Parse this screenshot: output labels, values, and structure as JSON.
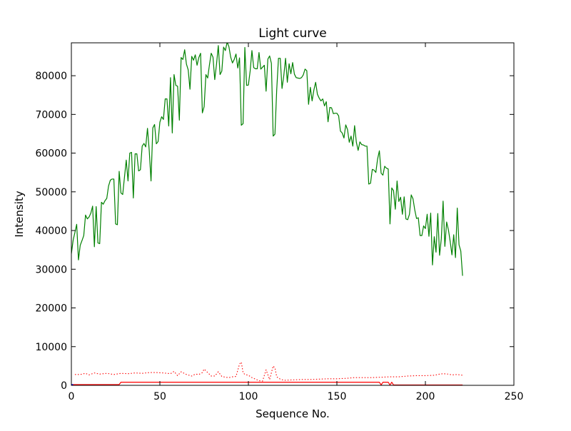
{
  "chart_data": {
    "type": "line",
    "title": "Light curve",
    "xlabel": "Sequence No.",
    "ylabel": "Intensity",
    "xlim": [
      0,
      250
    ],
    "ylim": [
      0,
      88500
    ],
    "xticks": [
      0,
      50,
      100,
      150,
      200,
      250
    ],
    "yticks": [
      0,
      10000,
      20000,
      30000,
      40000,
      50000,
      60000,
      70000,
      80000
    ],
    "grid": false,
    "legend": "none",
    "series": [
      {
        "color": "#008000",
        "style": "solid",
        "points": [
          [
            0,
            34000
          ],
          [
            1,
            37500
          ],
          [
            2,
            39500
          ],
          [
            3,
            41600
          ],
          [
            4,
            32400
          ],
          [
            5,
            36200
          ],
          [
            6,
            37400
          ],
          [
            7,
            38700
          ],
          [
            8,
            44000
          ],
          [
            9,
            43000
          ],
          [
            10,
            43500
          ],
          [
            11,
            44500
          ],
          [
            12,
            46300
          ],
          [
            13,
            35800
          ],
          [
            14,
            46200
          ],
          [
            15,
            36800
          ],
          [
            16,
            36600
          ],
          [
            17,
            47300
          ],
          [
            18,
            46800
          ],
          [
            19,
            47700
          ],
          [
            20,
            48300
          ],
          [
            21,
            51500
          ],
          [
            22,
            53000
          ],
          [
            23,
            53300
          ],
          [
            24,
            53300
          ],
          [
            25,
            41700
          ],
          [
            26,
            41500
          ],
          [
            27,
            55300
          ],
          [
            28,
            49700
          ],
          [
            29,
            49300
          ],
          [
            30,
            53800
          ],
          [
            31,
            58200
          ],
          [
            32,
            52800
          ],
          [
            33,
            60000
          ],
          [
            34,
            60200
          ],
          [
            35,
            48400
          ],
          [
            36,
            59800
          ],
          [
            37,
            59800
          ],
          [
            38,
            55400
          ],
          [
            39,
            55700
          ],
          [
            40,
            61800
          ],
          [
            41,
            62500
          ],
          [
            42,
            61600
          ],
          [
            43,
            66400
          ],
          [
            44,
            60600
          ],
          [
            45,
            52800
          ],
          [
            46,
            66500
          ],
          [
            47,
            67400
          ],
          [
            48,
            62400
          ],
          [
            49,
            63000
          ],
          [
            50,
            68000
          ],
          [
            51,
            69400
          ],
          [
            52,
            68700
          ],
          [
            53,
            74000
          ],
          [
            54,
            74000
          ],
          [
            55,
            67000
          ],
          [
            56,
            79500
          ],
          [
            57,
            65200
          ],
          [
            58,
            80300
          ],
          [
            59,
            77500
          ],
          [
            60,
            77300
          ],
          [
            61,
            68500
          ],
          [
            62,
            84700
          ],
          [
            63,
            84200
          ],
          [
            64,
            86700
          ],
          [
            65,
            83000
          ],
          [
            66,
            81500
          ],
          [
            67,
            76500
          ],
          [
            68,
            85000
          ],
          [
            69,
            84000
          ],
          [
            70,
            85400
          ],
          [
            71,
            82700
          ],
          [
            72,
            84700
          ],
          [
            73,
            85800
          ],
          [
            74,
            70400
          ],
          [
            75,
            72000
          ],
          [
            76,
            80300
          ],
          [
            77,
            79400
          ],
          [
            78,
            82800
          ],
          [
            79,
            85800
          ],
          [
            80,
            84800
          ],
          [
            81,
            79000
          ],
          [
            82,
            83000
          ],
          [
            83,
            87800
          ],
          [
            84,
            80300
          ],
          [
            85,
            81200
          ],
          [
            86,
            87400
          ],
          [
            87,
            86500
          ],
          [
            88,
            88700
          ],
          [
            89,
            87500
          ],
          [
            90,
            84800
          ],
          [
            91,
            83300
          ],
          [
            92,
            84200
          ],
          [
            93,
            85600
          ],
          [
            94,
            82000
          ],
          [
            95,
            84600
          ],
          [
            96,
            67200
          ],
          [
            97,
            67600
          ],
          [
            98,
            87300
          ],
          [
            99,
            77500
          ],
          [
            100,
            77600
          ],
          [
            101,
            81200
          ],
          [
            102,
            86500
          ],
          [
            103,
            82100
          ],
          [
            104,
            81800
          ],
          [
            105,
            81800
          ],
          [
            106,
            86000
          ],
          [
            107,
            81700
          ],
          [
            108,
            82200
          ],
          [
            109,
            82700
          ],
          [
            110,
            76000
          ],
          [
            111,
            84300
          ],
          [
            112,
            85100
          ],
          [
            113,
            83200
          ],
          [
            114,
            64400
          ],
          [
            115,
            64900
          ],
          [
            116,
            76300
          ],
          [
            117,
            84500
          ],
          [
            118,
            84500
          ],
          [
            119,
            76700
          ],
          [
            120,
            80000
          ],
          [
            121,
            84500
          ],
          [
            122,
            78300
          ],
          [
            123,
            83100
          ],
          [
            124,
            80500
          ],
          [
            125,
            83400
          ],
          [
            126,
            80400
          ],
          [
            127,
            79500
          ],
          [
            128,
            79400
          ],
          [
            129,
            79300
          ],
          [
            130,
            79500
          ],
          [
            131,
            80200
          ],
          [
            132,
            81700
          ],
          [
            133,
            81300
          ],
          [
            134,
            72600
          ],
          [
            135,
            77000
          ],
          [
            136,
            73500
          ],
          [
            137,
            76300
          ],
          [
            138,
            78300
          ],
          [
            139,
            75200
          ],
          [
            140,
            74200
          ],
          [
            141,
            73500
          ],
          [
            142,
            74000
          ],
          [
            143,
            72200
          ],
          [
            144,
            73300
          ],
          [
            145,
            68100
          ],
          [
            146,
            71800
          ],
          [
            147,
            71700
          ],
          [
            148,
            70200
          ],
          [
            149,
            70300
          ],
          [
            150,
            70300
          ],
          [
            151,
            69600
          ],
          [
            152,
            65700
          ],
          [
            153,
            65200
          ],
          [
            154,
            63900
          ],
          [
            155,
            67300
          ],
          [
            156,
            66100
          ],
          [
            157,
            62800
          ],
          [
            158,
            64400
          ],
          [
            159,
            61800
          ],
          [
            160,
            67100
          ],
          [
            161,
            62800
          ],
          [
            162,
            60700
          ],
          [
            163,
            62900
          ],
          [
            164,
            62200
          ],
          [
            165,
            62100
          ],
          [
            166,
            61800
          ],
          [
            167,
            61800
          ],
          [
            168,
            52000
          ],
          [
            169,
            52200
          ],
          [
            170,
            55800
          ],
          [
            171,
            55600
          ],
          [
            172,
            55000
          ],
          [
            173,
            58500
          ],
          [
            174,
            60600
          ],
          [
            175,
            54800
          ],
          [
            176,
            54300
          ],
          [
            177,
            56600
          ],
          [
            178,
            56100
          ],
          [
            179,
            55900
          ],
          [
            180,
            41700
          ],
          [
            181,
            51000
          ],
          [
            182,
            50300
          ],
          [
            183,
            45500
          ],
          [
            184,
            52800
          ],
          [
            185,
            47500
          ],
          [
            186,
            48600
          ],
          [
            187,
            44200
          ],
          [
            188,
            48700
          ],
          [
            189,
            43000
          ],
          [
            190,
            42800
          ],
          [
            191,
            44200
          ],
          [
            192,
            49200
          ],
          [
            193,
            48200
          ],
          [
            194,
            45300
          ],
          [
            195,
            43100
          ],
          [
            196,
            43300
          ],
          [
            197,
            38700
          ],
          [
            198,
            38700
          ],
          [
            199,
            41200
          ],
          [
            200,
            40500
          ],
          [
            201,
            44200
          ],
          [
            202,
            38500
          ],
          [
            203,
            44500
          ],
          [
            204,
            31100
          ],
          [
            205,
            38400
          ],
          [
            206,
            34400
          ],
          [
            207,
            44400
          ],
          [
            208,
            33600
          ],
          [
            209,
            37900
          ],
          [
            210,
            47600
          ],
          [
            211,
            35900
          ],
          [
            212,
            42200
          ],
          [
            213,
            40200
          ],
          [
            214,
            37200
          ],
          [
            215,
            33700
          ],
          [
            216,
            38900
          ],
          [
            217,
            33000
          ],
          [
            218,
            45800
          ],
          [
            219,
            36300
          ],
          [
            220,
            34700
          ],
          [
            221,
            28300
          ]
        ]
      },
      {
        "color": "#ff0000",
        "style": "dotted",
        "points": [
          [
            2,
            2800
          ],
          [
            5,
            2800
          ],
          [
            8,
            3100
          ],
          [
            10,
            2700
          ],
          [
            13,
            3200
          ],
          [
            16,
            2900
          ],
          [
            20,
            3100
          ],
          [
            24,
            2800
          ],
          [
            28,
            3100
          ],
          [
            32,
            3000
          ],
          [
            36,
            3200
          ],
          [
            40,
            3100
          ],
          [
            44,
            3300
          ],
          [
            48,
            3300
          ],
          [
            52,
            3200
          ],
          [
            56,
            3000
          ],
          [
            58,
            3600
          ],
          [
            60,
            2500
          ],
          [
            62,
            3500
          ],
          [
            65,
            2800
          ],
          [
            68,
            2400
          ],
          [
            70,
            2900
          ],
          [
            72,
            2800
          ],
          [
            74,
            3300
          ],
          [
            75,
            4200
          ],
          [
            77,
            3300
          ],
          [
            79,
            2400
          ],
          [
            81,
            2400
          ],
          [
            83,
            3500
          ],
          [
            85,
            2300
          ],
          [
            87,
            2100
          ],
          [
            89,
            2000
          ],
          [
            91,
            2200
          ],
          [
            93,
            2300
          ],
          [
            95,
            5500
          ],
          [
            96,
            6000
          ],
          [
            97,
            3300
          ],
          [
            98,
            2800
          ],
          [
            100,
            2600
          ],
          [
            102,
            2000
          ],
          [
            104,
            1600
          ],
          [
            106,
            1200
          ],
          [
            108,
            1100
          ],
          [
            110,
            4000
          ],
          [
            112,
            1500
          ],
          [
            114,
            5000
          ],
          [
            115,
            4500
          ],
          [
            116,
            2200
          ],
          [
            118,
            1600
          ],
          [
            120,
            1300
          ],
          [
            125,
            1400
          ],
          [
            130,
            1500
          ],
          [
            135,
            1500
          ],
          [
            140,
            1600
          ],
          [
            145,
            1700
          ],
          [
            150,
            1700
          ],
          [
            155,
            1800
          ],
          [
            160,
            2000
          ],
          [
            165,
            2000
          ],
          [
            170,
            2000
          ],
          [
            175,
            2100
          ],
          [
            180,
            2200
          ],
          [
            185,
            2200
          ],
          [
            190,
            2400
          ],
          [
            195,
            2500
          ],
          [
            200,
            2500
          ],
          [
            205,
            2600
          ],
          [
            208,
            2900
          ],
          [
            210,
            3000
          ],
          [
            213,
            2900
          ],
          [
            215,
            2700
          ],
          [
            218,
            2800
          ],
          [
            221,
            2600
          ]
        ]
      },
      {
        "color": "#ff0000",
        "style": "solid",
        "points": [
          [
            0,
            200
          ],
          [
            27,
            200
          ],
          [
            28,
            800
          ],
          [
            174,
            800
          ],
          [
            175,
            100
          ],
          [
            176,
            800
          ],
          [
            179,
            800
          ],
          [
            180,
            100
          ],
          [
            181,
            800
          ],
          [
            182,
            100
          ],
          [
            221,
            100
          ]
        ]
      },
      {
        "color": "#0000ff",
        "style": "solid",
        "points": [
          [
            0,
            200
          ],
          [
            1,
            200
          ]
        ]
      }
    ]
  }
}
